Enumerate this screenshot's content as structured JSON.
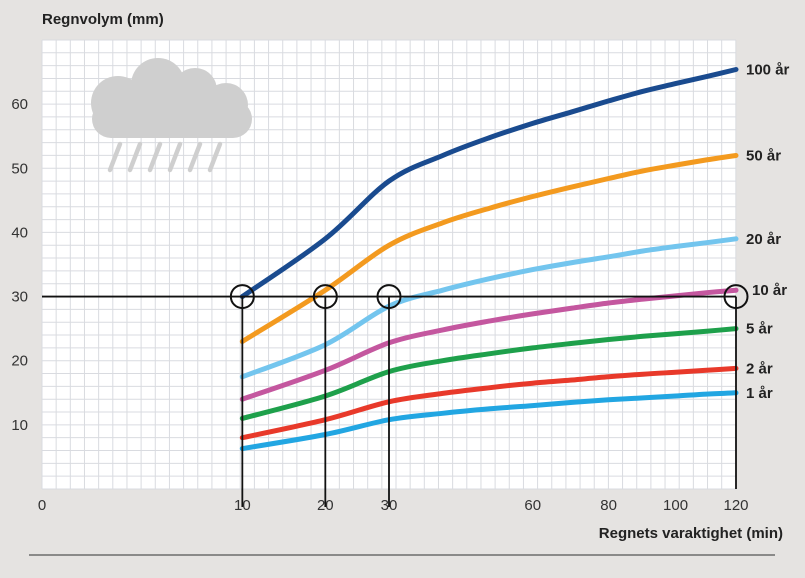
{
  "chart_data": {
    "type": "line",
    "title": "",
    "ylabel": "Regnvolym (mm)",
    "xlabel": "Regnets varaktighet (min)",
    "xlim": [
      0,
      120
    ],
    "ylim": [
      0,
      70
    ],
    "x_scale": "sqrt",
    "x_ticks": [
      0,
      10,
      20,
      30,
      60,
      80,
      100,
      120
    ],
    "y_ticks": [
      10,
      20,
      30,
      40,
      50,
      60
    ],
    "grid": true,
    "legend_position": "right, at line ends",
    "x": [
      10,
      20,
      30,
      40,
      50,
      60,
      70,
      80,
      90,
      100,
      110,
      120
    ],
    "series": [
      {
        "name": "100 år",
        "color": "#1a4b8f",
        "values": [
          30,
          39,
          48,
          52,
          54.8,
          57,
          58.8,
          60.5,
          62,
          63.2,
          64.3,
          65.4
        ]
      },
      {
        "name": "50 år",
        "color": "#f39a1f",
        "values": [
          23,
          31,
          38,
          41.5,
          43.8,
          45.6,
          47.1,
          48.4,
          49.6,
          50.5,
          51.3,
          52
        ]
      },
      {
        "name": "20 år",
        "color": "#73c5ee",
        "values": [
          17.5,
          22.5,
          28.5,
          31,
          32.8,
          34.2,
          35.3,
          36.2,
          37.1,
          37.8,
          38.4,
          39
        ]
      },
      {
        "name": "10 år",
        "color": "#c4579f",
        "values": [
          14,
          18.5,
          22.8,
          24.8,
          26.2,
          27.3,
          28.2,
          29,
          29.6,
          30.1,
          30.6,
          31
        ]
      },
      {
        "name": "5 år",
        "color": "#1ea04b",
        "values": [
          11,
          14.5,
          18.3,
          20,
          21.1,
          22,
          22.7,
          23.3,
          23.8,
          24.2,
          24.6,
          25
        ]
      },
      {
        "name": "2 år",
        "color": "#e8392a",
        "values": [
          8,
          10.8,
          13.6,
          14.9,
          15.8,
          16.5,
          17,
          17.5,
          17.9,
          18.2,
          18.5,
          18.8
        ]
      },
      {
        "name": "1 år",
        "color": "#22a6e2",
        "values": [
          6.3,
          8.5,
          10.8,
          11.8,
          12.5,
          13,
          13.5,
          13.9,
          14.2,
          14.5,
          14.8,
          15
        ]
      }
    ],
    "reference_line": {
      "y": 30,
      "x_markers": [
        10,
        20,
        30,
        120
      ]
    }
  }
}
